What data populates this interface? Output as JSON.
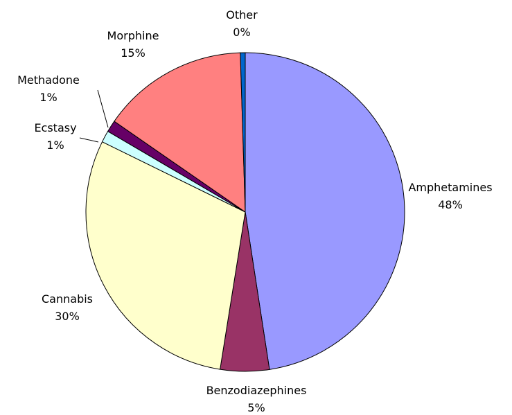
{
  "chart_data": {
    "type": "pie",
    "start": "12 o'clock",
    "direction": "clockwise",
    "slices": [
      {
        "name": "Amphetamines",
        "value": 48,
        "pct_label": "48%",
        "color": "#9999FF"
      },
      {
        "name": "Benzodiazephines",
        "value": 5,
        "pct_label": "5%",
        "color": "#993366"
      },
      {
        "name": "Cannabis",
        "value": 30,
        "pct_label": "30%",
        "color": "#FFFFCC"
      },
      {
        "name": "Ecstasy",
        "value": 1.2,
        "pct_label": "1%",
        "color": "#CCFFFF"
      },
      {
        "name": "Methadone",
        "value": 1.2,
        "pct_label": "1%",
        "color": "#660066"
      },
      {
        "name": "Morphine",
        "value": 15,
        "pct_label": "15%",
        "color": "#FF8080"
      },
      {
        "name": "Other",
        "value": 0.5,
        "pct_label": "0%",
        "color": "#0066CC"
      }
    ]
  }
}
